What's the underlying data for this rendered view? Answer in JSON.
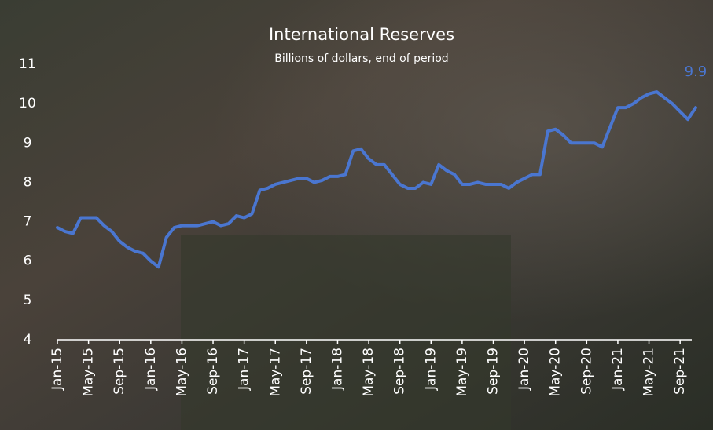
{
  "chart_data": {
    "type": "line",
    "title": "International Reserves",
    "subtitle": "Billions of dollars, end of period",
    "categories": [
      "Jan-15",
      null,
      null,
      null,
      "May-15",
      null,
      null,
      null,
      "Sep-15",
      null,
      null,
      null,
      "Jan-16",
      null,
      null,
      null,
      "May-16",
      null,
      null,
      null,
      "Sep-16",
      null,
      null,
      null,
      "Jan-17",
      null,
      null,
      null,
      "May-17",
      null,
      null,
      null,
      "Sep-17",
      null,
      null,
      null,
      "Jan-18",
      null,
      null,
      null,
      "May-18",
      null,
      null,
      null,
      "Sep-18",
      null,
      null,
      null,
      "Jan-19",
      null,
      null,
      null,
      "May-19",
      null,
      null,
      null,
      "Sep-19",
      null,
      null,
      null,
      "Jan-20",
      null,
      null,
      null,
      "May-20",
      null,
      null,
      null,
      "Sep-20",
      null,
      null,
      null,
      "Jan-21",
      null,
      null,
      null,
      "May-21",
      null,
      null,
      null,
      "Sep-21",
      null,
      null
    ],
    "series": [
      {
        "color": "#4a76d0",
        "values": [
          6.85,
          6.75,
          6.7,
          7.1,
          7.1,
          7.1,
          6.9,
          6.75,
          6.5,
          6.35,
          6.25,
          6.2,
          6.0,
          5.85,
          6.6,
          6.85,
          6.9,
          6.9,
          6.9,
          6.95,
          7.0,
          6.9,
          6.95,
          7.15,
          7.1,
          7.2,
          7.8,
          7.85,
          7.95,
          8.0,
          8.05,
          8.1,
          8.1,
          8.0,
          8.05,
          8.15,
          8.15,
          8.2,
          8.8,
          8.85,
          8.6,
          8.45,
          8.45,
          8.2,
          7.95,
          7.85,
          7.85,
          8.0,
          7.95,
          8.45,
          8.3,
          8.2,
          7.95,
          7.95,
          8.0,
          7.95,
          7.95,
          7.95,
          7.85,
          8.0,
          8.1,
          8.2,
          8.2,
          9.3,
          9.35,
          9.2,
          9.0,
          9.0,
          9.0,
          9.0,
          8.9,
          9.4,
          9.9,
          9.9,
          10.0,
          10.15,
          10.25,
          10.3,
          10.15,
          10.0,
          9.8,
          9.6,
          9.9
        ]
      }
    ],
    "ylim": [
      4,
      11
    ],
    "yticks": [
      4,
      5,
      6,
      7,
      8,
      9,
      10,
      11
    ],
    "grid": false
  }
}
